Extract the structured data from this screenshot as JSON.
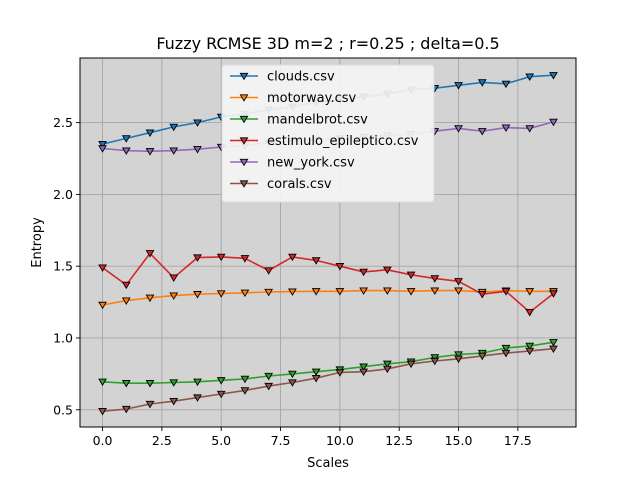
{
  "chart_data": {
    "type": "line",
    "title": "Fuzzy RCMSE 3D m=2 ; r=0.25 ; delta=0.5",
    "xlabel": "Scales",
    "ylabel": "Entropy",
    "xlim": [
      -0.95,
      19.95
    ],
    "ylim": [
      0.38,
      2.95
    ],
    "xticks": [
      0.0,
      2.5,
      5.0,
      7.5,
      10.0,
      12.5,
      15.0,
      17.5
    ],
    "xtick_labels": [
      "0.0",
      "2.5",
      "5.0",
      "7.5",
      "10.0",
      "12.5",
      "15.0",
      "17.5"
    ],
    "yticks": [
      0.5,
      1.0,
      1.5,
      2.0,
      2.5
    ],
    "ytick_labels": [
      "0.5",
      "1.0",
      "1.5",
      "2.0",
      "2.5"
    ],
    "grid": true,
    "background": "#d3d3d3",
    "marker": "triangle-down",
    "legend_position": "upper-center",
    "x": [
      0,
      1,
      2,
      3,
      4,
      5,
      6,
      7,
      8,
      9,
      10,
      11,
      12,
      13,
      14,
      15,
      16,
      17,
      18,
      19
    ],
    "series": [
      {
        "name": "clouds.csv",
        "color": "#1f77b4",
        "values": [
          2.35,
          2.39,
          2.43,
          2.47,
          2.5,
          2.54,
          2.56,
          2.59,
          2.61,
          2.64,
          2.66,
          2.68,
          2.7,
          2.73,
          2.74,
          2.76,
          2.78,
          2.77,
          2.82,
          2.83
        ]
      },
      {
        "name": "motorway.csv",
        "color": "#ff7f0e",
        "values": [
          1.23,
          1.26,
          1.28,
          1.295,
          1.305,
          1.31,
          1.315,
          1.32,
          1.323,
          1.325,
          1.325,
          1.33,
          1.33,
          1.325,
          1.33,
          1.33,
          1.32,
          1.33,
          1.325,
          1.325
        ]
      },
      {
        "name": "mandelbrot.csv",
        "color": "#2ca02c",
        "values": [
          0.695,
          0.685,
          0.685,
          0.69,
          0.695,
          0.705,
          0.715,
          0.735,
          0.75,
          0.765,
          0.78,
          0.8,
          0.82,
          0.835,
          0.865,
          0.885,
          0.895,
          0.93,
          0.945,
          0.97
        ]
      },
      {
        "name": "estimulo_epileptico.csv",
        "color": "#d62728",
        "values": [
          1.49,
          1.37,
          1.59,
          1.42,
          1.56,
          1.565,
          1.555,
          1.47,
          1.565,
          1.54,
          1.5,
          1.46,
          1.475,
          1.44,
          1.415,
          1.395,
          1.305,
          1.325,
          1.18,
          1.31
        ]
      },
      {
        "name": "new_york.csv",
        "color": "#9467bd",
        "values": [
          2.32,
          2.305,
          2.3,
          2.305,
          2.315,
          2.33,
          2.34,
          2.36,
          2.37,
          2.38,
          2.39,
          2.4,
          2.41,
          2.42,
          2.44,
          2.46,
          2.44,
          2.465,
          2.46,
          2.505
        ]
      },
      {
        "name": "corals.csv",
        "color": "#8c564b",
        "values": [
          0.49,
          0.505,
          0.54,
          0.56,
          0.585,
          0.61,
          0.635,
          0.665,
          0.69,
          0.72,
          0.76,
          0.765,
          0.785,
          0.82,
          0.84,
          0.855,
          0.875,
          0.895,
          0.91,
          0.925
        ]
      }
    ]
  }
}
